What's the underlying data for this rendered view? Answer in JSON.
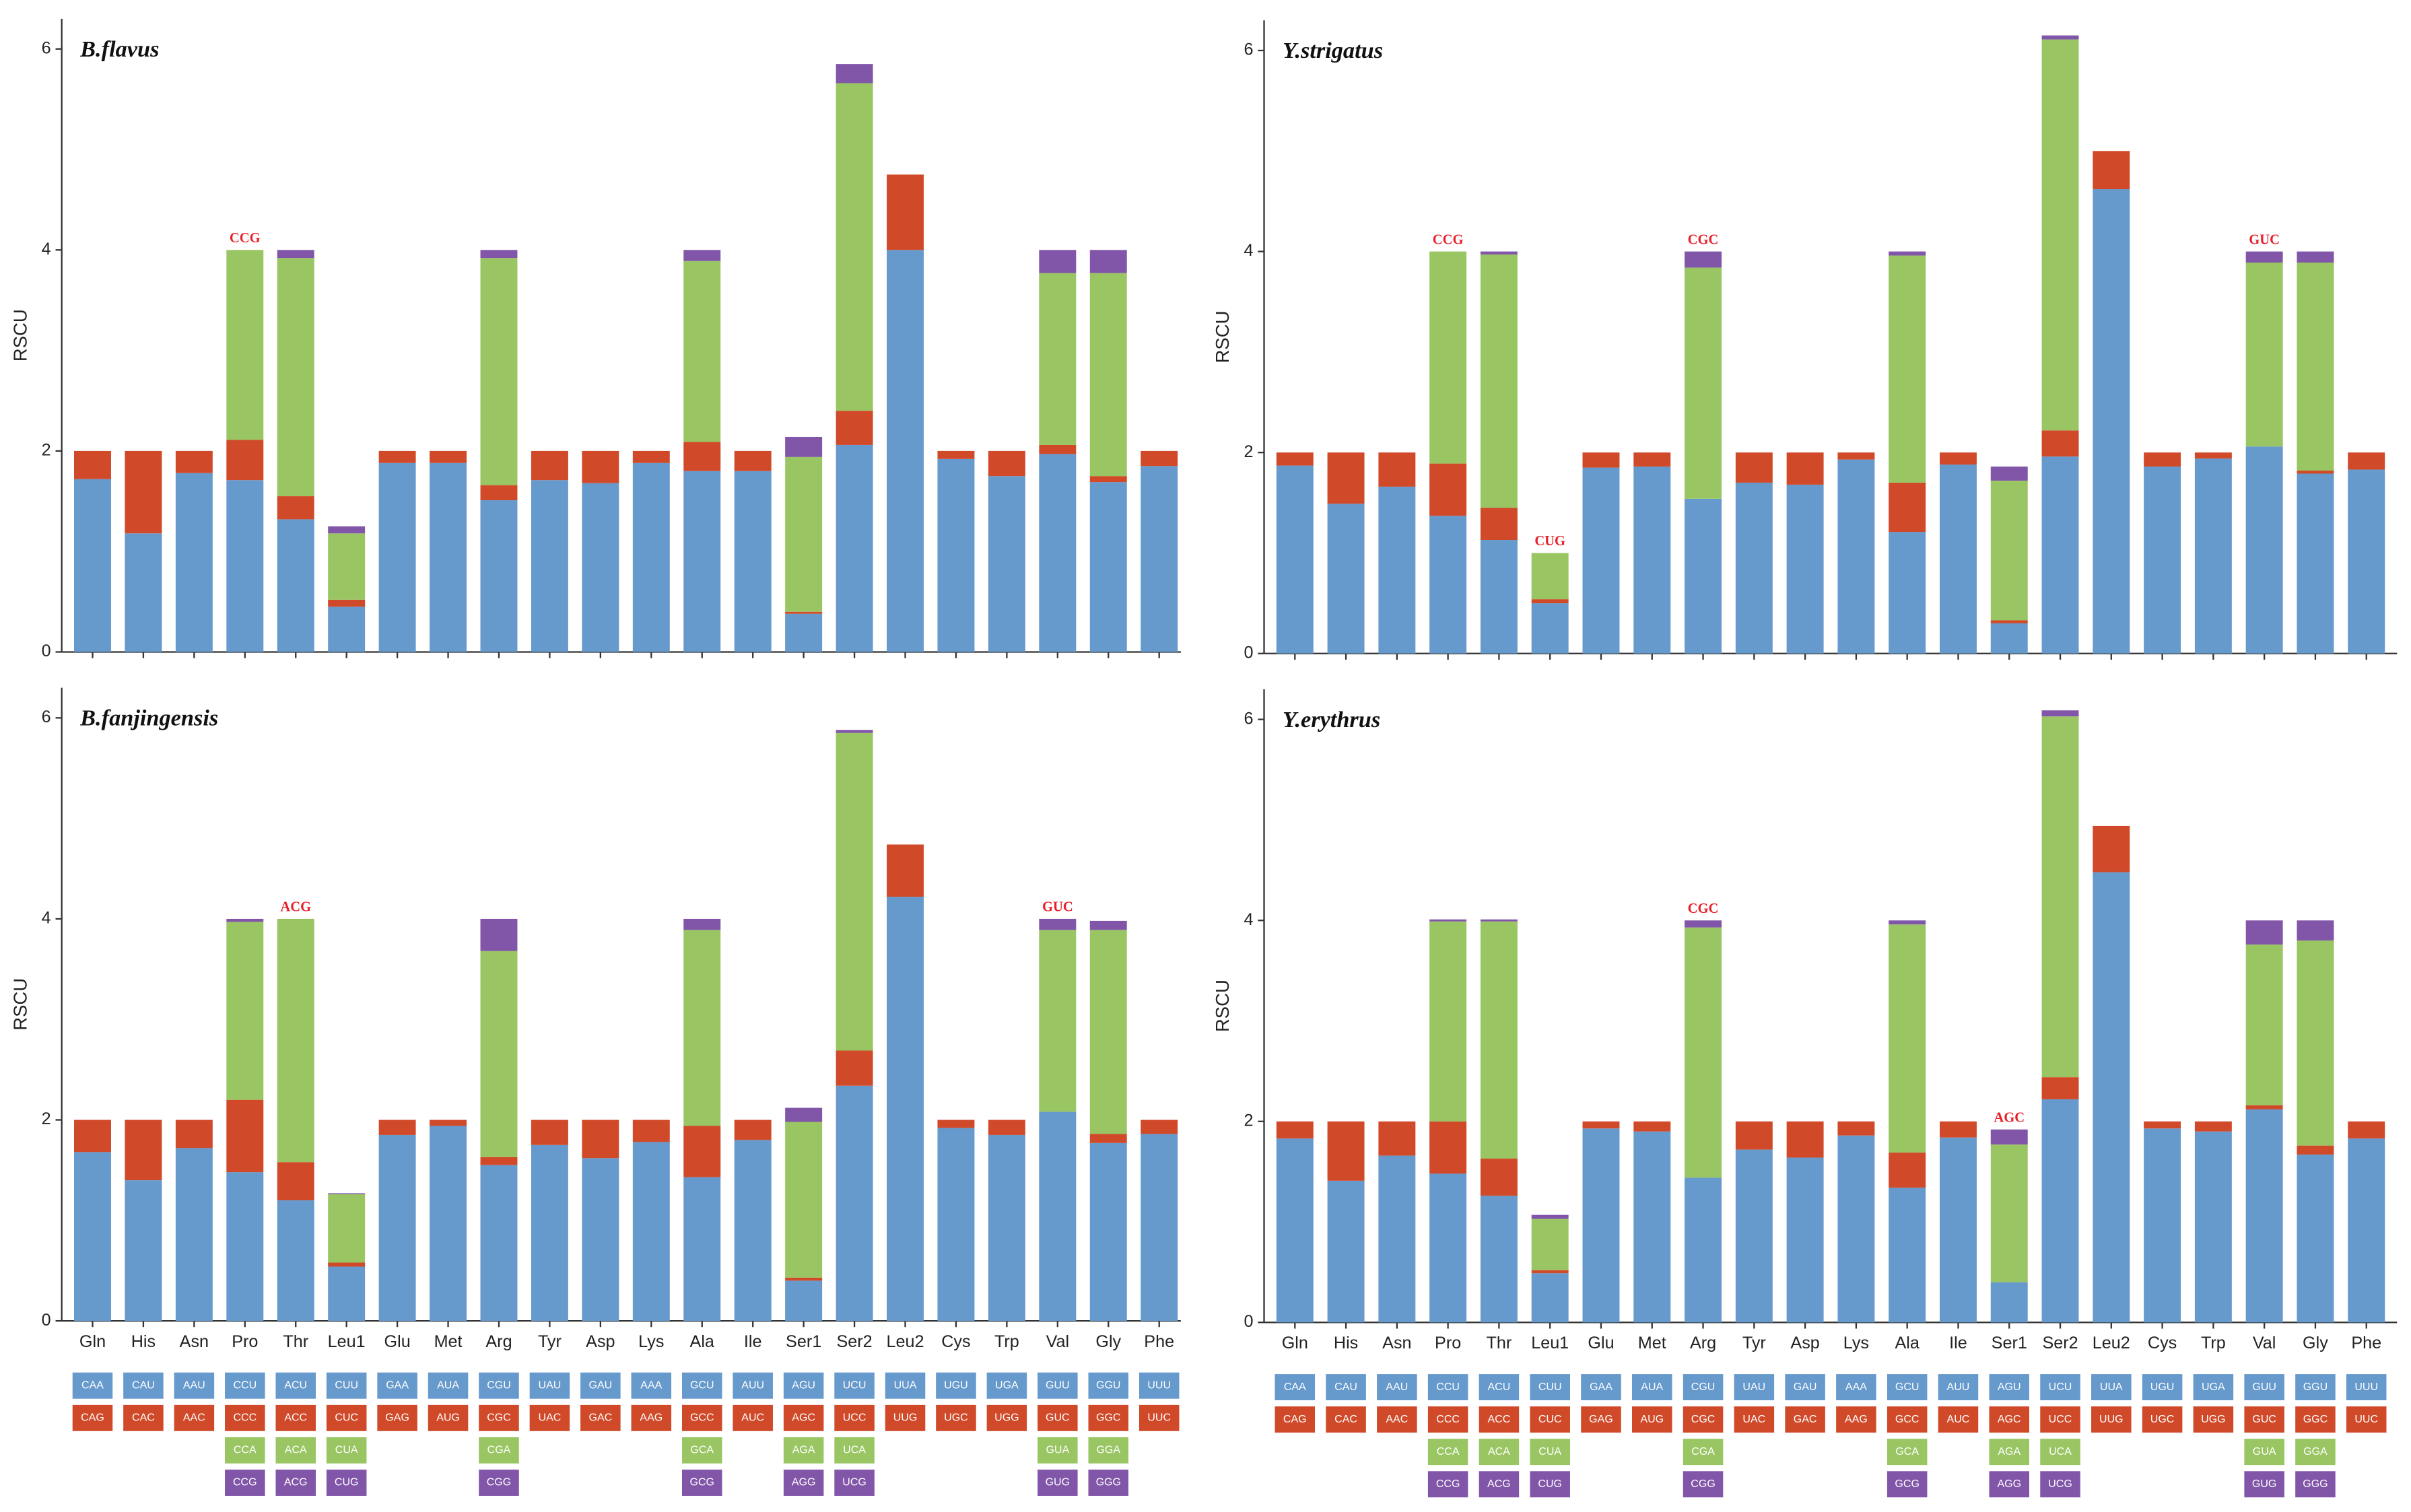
{
  "chart_data": [
    {
      "type": "bar",
      "stacked": true,
      "title": "B.flavus",
      "ylabel": "RSCU",
      "xticklabels": false,
      "categories": [
        "Gln",
        "His",
        "Asn",
        "Pro",
        "Thr",
        "Leu1",
        "Glu",
        "Met",
        "Arg",
        "Tyr",
        "Asp",
        "Lys",
        "Ala",
        "Ile",
        "Ser1",
        "Ser2",
        "Leu2",
        "Cys",
        "Trp",
        "Val",
        "Gly",
        "Phe"
      ],
      "ylim": [
        0,
        6.3
      ],
      "yticks": [
        0,
        2,
        4,
        6
      ],
      "series": [
        {
          "color": "#6699CC",
          "values": [
            1.72,
            1.18,
            1.78,
            1.71,
            1.32,
            0.45,
            1.88,
            1.88,
            1.51,
            1.71,
            1.68,
            1.88,
            1.8,
            1.8,
            0.38,
            2.06,
            4.0,
            1.92,
            1.75,
            1.97,
            1.69,
            1.85
          ]
        },
        {
          "color": "#D04A2A",
          "values": [
            0.28,
            0.82,
            0.22,
            0.4,
            0.23,
            0.07,
            0.12,
            0.12,
            0.15,
            0.29,
            0.32,
            0.12,
            0.29,
            0.2,
            0.02,
            0.34,
            0.75,
            0.08,
            0.25,
            0.09,
            0.06,
            0.15
          ]
        },
        {
          "color": "#99C563",
          "values": [
            null,
            null,
            null,
            1.89,
            2.37,
            0.66,
            null,
            null,
            2.26,
            null,
            null,
            null,
            1.8,
            null,
            1.54,
            3.26,
            null,
            null,
            null,
            1.71,
            2.02,
            null
          ]
        },
        {
          "color": "#8156A8",
          "values": [
            null,
            null,
            null,
            0,
            0.08,
            0.07,
            null,
            null,
            0.08,
            null,
            null,
            null,
            0.11,
            null,
            0.2,
            0.19,
            null,
            null,
            null,
            0.23,
            0.23,
            null
          ]
        }
      ],
      "annotations": [
        {
          "text": "CCG",
          "x": "Pro"
        }
      ]
    },
    {
      "type": "bar",
      "stacked": true,
      "title": "Y.strigatus",
      "ylabel": "RSCU",
      "xticklabels": false,
      "categories": [
        "Gln",
        "His",
        "Asn",
        "Pro",
        "Thr",
        "Leu1",
        "Glu",
        "Met",
        "Arg",
        "Tyr",
        "Asp",
        "Lys",
        "Ala",
        "Ile",
        "Ser1",
        "Ser2",
        "Leu2",
        "Cys",
        "Trp",
        "Val",
        "Gly",
        "Phe"
      ],
      "ylim": [
        0,
        6.3
      ],
      "yticks": [
        0,
        2,
        4,
        6
      ],
      "series": [
        {
          "color": "#6699CC",
          "values": [
            1.87,
            1.49,
            1.66,
            1.37,
            1.13,
            0.5,
            1.85,
            1.86,
            1.54,
            1.7,
            1.68,
            1.93,
            1.21,
            1.88,
            0.3,
            1.96,
            4.62,
            1.86,
            1.94,
            2.06,
            1.79,
            1.83
          ]
        },
        {
          "color": "#D04A2A",
          "values": [
            0.13,
            0.51,
            0.34,
            0.52,
            0.32,
            0.04,
            0.15,
            0.14,
            0,
            0.3,
            0.32,
            0.07,
            0.49,
            0.12,
            0.03,
            0.26,
            0.38,
            0.14,
            0.06,
            0,
            0.03,
            0.17
          ]
        },
        {
          "color": "#99C563",
          "values": [
            null,
            null,
            null,
            2.11,
            2.52,
            0.46,
            null,
            null,
            2.3,
            null,
            null,
            null,
            2.26,
            null,
            1.39,
            3.89,
            null,
            null,
            null,
            1.83,
            2.07,
            null
          ]
        },
        {
          "color": "#8156A8",
          "values": [
            null,
            null,
            null,
            0,
            0.03,
            0,
            null,
            null,
            0.16,
            null,
            null,
            null,
            0.04,
            null,
            0.14,
            0.04,
            null,
            null,
            null,
            0.11,
            0.11,
            null
          ]
        }
      ],
      "annotations": [
        {
          "text": "CCG",
          "x": "Pro"
        },
        {
          "text": "CUG",
          "x": "Leu1"
        },
        {
          "text": "CGC",
          "x": "Arg"
        },
        {
          "text": "GUC",
          "x": "Val"
        }
      ]
    },
    {
      "type": "bar",
      "stacked": true,
      "title": "B.fanjingensis",
      "ylabel": "RSCU",
      "xticklabels": true,
      "categories": [
        "Gln",
        "His",
        "Asn",
        "Pro",
        "Thr",
        "Leu1",
        "Glu",
        "Met",
        "Arg",
        "Tyr",
        "Asp",
        "Lys",
        "Ala",
        "Ile",
        "Ser1",
        "Ser2",
        "Leu2",
        "Cys",
        "Trp",
        "Val",
        "Gly",
        "Phe"
      ],
      "ylim": [
        0,
        6.3
      ],
      "yticks": [
        0,
        2,
        4,
        6
      ],
      "series": [
        {
          "color": "#6699CC",
          "values": [
            1.68,
            1.4,
            1.72,
            1.48,
            1.2,
            0.54,
            1.85,
            1.94,
            1.55,
            1.75,
            1.62,
            1.78,
            1.43,
            1.8,
            0.4,
            2.34,
            4.22,
            1.92,
            1.85,
            2.08,
            1.77,
            1.86
          ]
        },
        {
          "color": "#D04A2A",
          "values": [
            0.32,
            0.6,
            0.28,
            0.72,
            0.38,
            0.04,
            0.15,
            0.06,
            0.08,
            0.25,
            0.38,
            0.22,
            0.51,
            0.2,
            0.03,
            0.35,
            0.52,
            0.08,
            0.15,
            0,
            0.09,
            0.14
          ]
        },
        {
          "color": "#99C563",
          "values": [
            null,
            null,
            null,
            1.77,
            2.42,
            0.68,
            null,
            null,
            2.05,
            null,
            null,
            null,
            1.95,
            null,
            1.55,
            3.16,
            null,
            null,
            null,
            1.81,
            2.03,
            null
          ]
        },
        {
          "color": "#8156A8",
          "values": [
            null,
            null,
            null,
            0.03,
            0,
            0.01,
            null,
            null,
            0.32,
            null,
            null,
            null,
            0.11,
            null,
            0.14,
            0.03,
            null,
            null,
            null,
            0.11,
            0.09,
            null
          ]
        }
      ],
      "annotations": [
        {
          "text": "ACG",
          "x": "Thr"
        },
        {
          "text": "GUC",
          "x": "Val"
        }
      ],
      "codons": [
        [
          "CAA",
          "CAG"
        ],
        [
          "CAU",
          "CAC"
        ],
        [
          "AAU",
          "AAC"
        ],
        [
          "CCU",
          "CCC",
          "CCA",
          "CCG"
        ],
        [
          "ACU",
          "ACC",
          "ACA",
          "ACG"
        ],
        [
          "CUU",
          "CUC",
          "CUA",
          "CUG"
        ],
        [
          "GAA",
          "GAG"
        ],
        [
          "AUA",
          "AUG"
        ],
        [
          "CGU",
          "CGC",
          "CGA",
          "CGG"
        ],
        [
          "UAU",
          "UAC"
        ],
        [
          "GAU",
          "GAC"
        ],
        [
          "AAA",
          "AAG"
        ],
        [
          "GCU",
          "GCC",
          "GCA",
          "GCG"
        ],
        [
          "AUU",
          "AUC"
        ],
        [
          "AGU",
          "AGC",
          "AGA",
          "AGG"
        ],
        [
          "UCU",
          "UCC",
          "UCA",
          "UCG"
        ],
        [
          "UUA",
          "UUG"
        ],
        [
          "UGU",
          "UGC"
        ],
        [
          "UGA",
          "UGG"
        ],
        [
          "GUU",
          "GUC",
          "GUA",
          "GUG"
        ],
        [
          "GGU",
          "GGC",
          "GGA",
          "GGG"
        ],
        [
          "UUU",
          "UUC"
        ]
      ]
    },
    {
      "type": "bar",
      "stacked": true,
      "title": "Y.erythrus",
      "ylabel": "RSCU",
      "xticklabels": true,
      "categories": [
        "Gln",
        "His",
        "Asn",
        "Pro",
        "Thr",
        "Leu1",
        "Glu",
        "Met",
        "Arg",
        "Tyr",
        "Asp",
        "Lys",
        "Ala",
        "Ile",
        "Ser1",
        "Ser2",
        "Leu2",
        "Cys",
        "Trp",
        "Val",
        "Gly",
        "Phe"
      ],
      "ylim": [
        0,
        6.3
      ],
      "yticks": [
        0,
        2,
        4,
        6
      ],
      "series": [
        {
          "color": "#6699CC",
          "values": [
            1.83,
            1.41,
            1.66,
            1.48,
            1.26,
            0.49,
            1.93,
            1.9,
            1.44,
            1.72,
            1.64,
            1.86,
            1.34,
            1.84,
            0.4,
            2.22,
            4.48,
            1.93,
            1.9,
            2.12,
            1.67,
            1.83
          ]
        },
        {
          "color": "#D04A2A",
          "values": [
            0.17,
            0.59,
            0.34,
            0.52,
            0.37,
            0.03,
            0.07,
            0.1,
            0,
            0.28,
            0.36,
            0.14,
            0.35,
            0.16,
            0,
            0.22,
            0.46,
            0.07,
            0.1,
            0.04,
            0.09,
            0.17
          ]
        },
        {
          "color": "#99C563",
          "values": [
            null,
            null,
            null,
            1.99,
            2.36,
            0.51,
            null,
            null,
            2.49,
            null,
            null,
            null,
            2.27,
            null,
            1.37,
            3.59,
            null,
            null,
            null,
            1.6,
            2.04,
            null
          ]
        },
        {
          "color": "#8156A8",
          "values": [
            null,
            null,
            null,
            0.02,
            0.02,
            0.04,
            null,
            null,
            0.07,
            null,
            null,
            null,
            0.04,
            null,
            0.15,
            0.06,
            null,
            null,
            null,
            0.24,
            0.2,
            null
          ]
        }
      ],
      "annotations": [
        {
          "text": "CGC",
          "x": "Arg"
        },
        {
          "text": "AGC",
          "x": "Ser1"
        }
      ],
      "codons": [
        [
          "CAA",
          "CAG"
        ],
        [
          "CAU",
          "CAC"
        ],
        [
          "AAU",
          "AAC"
        ],
        [
          "CCU",
          "CCC",
          "CCA",
          "CCG"
        ],
        [
          "ACU",
          "ACC",
          "ACA",
          "ACG"
        ],
        [
          "CUU",
          "CUC",
          "CUA",
          "CUG"
        ],
        [
          "GAA",
          "GAG"
        ],
        [
          "AUA",
          "AUG"
        ],
        [
          "CGU",
          "CGC",
          "CGA",
          "CGG"
        ],
        [
          "UAU",
          "UAC"
        ],
        [
          "GAU",
          "GAC"
        ],
        [
          "AAA",
          "AAG"
        ],
        [
          "GCU",
          "GCC",
          "GCA",
          "GCG"
        ],
        [
          "AUU",
          "AUC"
        ],
        [
          "AGU",
          "AGC",
          "AGA",
          "AGG"
        ],
        [
          "UCU",
          "UCC",
          "UCA",
          "UCG"
        ],
        [
          "UUA",
          "UUG"
        ],
        [
          "UGU",
          "UGC"
        ],
        [
          "UGA",
          "UGG"
        ],
        [
          "GUU",
          "GUC",
          "GUA",
          "GUG"
        ],
        [
          "GGU",
          "GGC",
          "GGA",
          "GGG"
        ],
        [
          "UUU",
          "UUC"
        ]
      ]
    }
  ]
}
